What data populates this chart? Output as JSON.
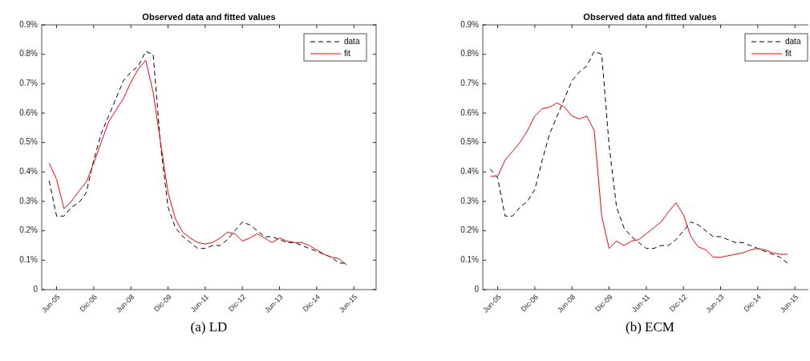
{
  "chart_data": [
    {
      "type": "line",
      "title": "Observed data and fitted values",
      "legend": "top right",
      "grid": false,
      "annotations": [
        "(a) LD"
      ],
      "categories": [
        null,
        "Jun-05",
        null,
        null,
        null,
        null,
        "Dic-06",
        null,
        null,
        null,
        null,
        "Jun-08",
        null,
        null,
        null,
        null,
        "Dic-09",
        null,
        null,
        null,
        null,
        "Jun-11",
        null,
        null,
        null,
        null,
        "Dic-12",
        null,
        null,
        null,
        null,
        "Jun-13",
        null,
        null,
        null,
        null,
        "Dic-14",
        null,
        null,
        null,
        null,
        "Jun-15"
      ],
      "ylim": [
        0,
        0.9
      ],
      "yticks": [
        0,
        {
          "value": 0.1,
          "label": "0.1%"
        },
        {
          "value": 0.2,
          "label": "0.2%"
        },
        {
          "value": 0.3,
          "label": "0.3%"
        },
        {
          "value": 0.4,
          "label": "0.4%"
        },
        {
          "value": 0.5,
          "label": "0.5%"
        },
        {
          "value": 0.6,
          "label": "0.6%"
        },
        {
          "value": 0.7,
          "label": "0.7%"
        },
        {
          "value": 0.8,
          "label": "0.8%"
        },
        {
          "value": 0.9,
          "label": "0.9%"
        }
      ],
      "series": [
        {
          "name": "data",
          "color": "#000000",
          "line_style": "dashed",
          "values": [
            0.37,
            0.25,
            0.25,
            0.28,
            0.295,
            0.33,
            0.44,
            0.53,
            0.59,
            0.65,
            0.71,
            0.74,
            0.76,
            0.81,
            0.8,
            0.49,
            0.28,
            0.21,
            0.18,
            0.16,
            0.14,
            0.14,
            0.15,
            0.15,
            0.17,
            0.2,
            0.23,
            0.22,
            0.2,
            0.18,
            0.18,
            0.17,
            0.16,
            0.16,
            0.15,
            0.14,
            0.13,
            0.12,
            0.11,
            0.09,
            0.09,
            null
          ]
        },
        {
          "name": "fit",
          "color": "#ff0000",
          "line_style": "solid",
          "values": [
            0.43,
            0.375,
            0.275,
            0.3,
            0.335,
            0.365,
            0.43,
            0.5,
            0.57,
            0.61,
            0.65,
            0.705,
            0.75,
            0.78,
            0.67,
            0.5,
            0.33,
            0.24,
            0.195,
            0.175,
            0.16,
            0.155,
            0.16,
            0.175,
            0.195,
            0.19,
            0.165,
            0.175,
            0.19,
            0.175,
            0.16,
            0.175,
            0.165,
            0.16,
            0.16,
            0.15,
            0.135,
            0.12,
            0.11,
            0.105,
            0.085,
            null
          ]
        }
      ]
    },
    {
      "type": "line",
      "title": "Observed data and fitted values",
      "legend": "top right",
      "grid": false,
      "annotations": [
        "(b) ECM"
      ],
      "categories": [
        null,
        "Jun-05",
        null,
        null,
        null,
        null,
        "Dic-06",
        null,
        null,
        null,
        null,
        "Jun-08",
        null,
        null,
        null,
        null,
        "Dic-09",
        null,
        null,
        null,
        null,
        "Jun-11",
        null,
        null,
        null,
        null,
        "Dic-12",
        null,
        null,
        null,
        null,
        "Jun-13",
        null,
        null,
        null,
        null,
        "Dic-14",
        null,
        null,
        null,
        null,
        "Jun-15"
      ],
      "ylim": [
        0,
        0.9
      ],
      "yticks": [
        0,
        {
          "value": 0.1,
          "label": "0.1%"
        },
        {
          "value": 0.2,
          "label": "0.2%"
        },
        {
          "value": 0.3,
          "label": "0.3%"
        },
        {
          "value": 0.4,
          "label": "0.4%"
        },
        {
          "value": 0.5,
          "label": "0.5%"
        },
        {
          "value": 0.6,
          "label": "0.6%"
        },
        {
          "value": 0.7,
          "label": "0.7%"
        },
        {
          "value": 0.8,
          "label": "0.8%"
        },
        {
          "value": 0.9,
          "label": "0.9%"
        }
      ],
      "series": [
        {
          "name": "data",
          "color": "#000000",
          "line_style": "dashed",
          "values": [
            0.41,
            0.38,
            0.25,
            0.25,
            0.28,
            0.3,
            0.34,
            0.44,
            0.53,
            0.59,
            0.65,
            0.71,
            0.74,
            0.76,
            0.81,
            0.8,
            0.49,
            0.28,
            0.21,
            0.18,
            0.16,
            0.14,
            0.14,
            0.15,
            0.15,
            0.17,
            0.2,
            0.23,
            0.22,
            0.2,
            0.18,
            0.18,
            0.17,
            0.16,
            0.16,
            0.15,
            0.14,
            0.13,
            0.12,
            0.11,
            0.09,
            null
          ]
        },
        {
          "name": "fit",
          "color": "#ff0000",
          "line_style": "solid",
          "values": [
            0.385,
            0.385,
            0.44,
            0.47,
            0.5,
            0.54,
            0.59,
            0.615,
            0.62,
            0.635,
            0.62,
            0.59,
            0.58,
            0.59,
            0.54,
            0.25,
            0.14,
            0.165,
            0.15,
            0.165,
            0.17,
            0.19,
            0.21,
            0.23,
            0.265,
            0.295,
            0.255,
            0.18,
            0.145,
            0.135,
            0.11,
            0.11,
            0.115,
            0.12,
            0.125,
            0.135,
            0.14,
            0.135,
            0.125,
            0.12,
            0.12,
            null
          ]
        }
      ]
    }
  ]
}
